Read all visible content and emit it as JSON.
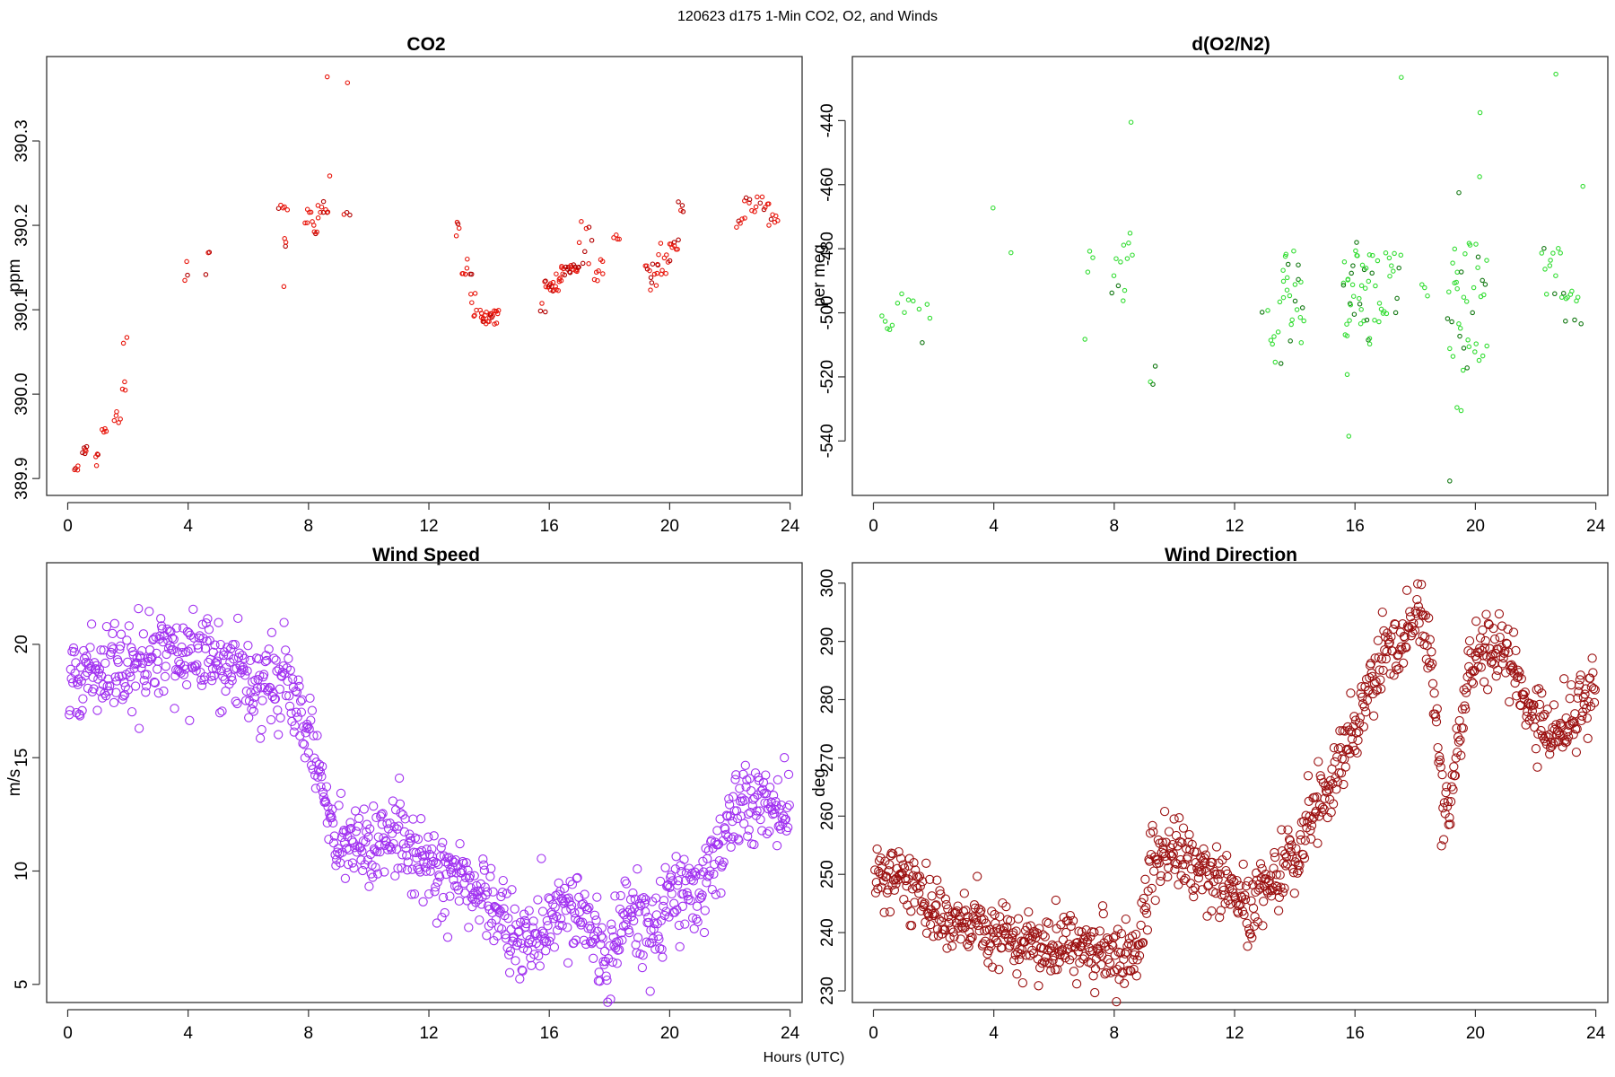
{
  "figure": {
    "title": "120623   d175   1-Min CO2, O2, and Winds",
    "xlabel": "Hours (UTC)"
  },
  "colors": {
    "co2": "#e8160c",
    "co2_dark": "#b20000",
    "o2": "#33dd33",
    "o2_dark": "#117711",
    "wind_speed": "#a030f0",
    "wind_direction": "#9b1010"
  },
  "chart_data": [
    {
      "id": "co2",
      "type": "scatter",
      "title": "CO2",
      "ylabel": "ppm",
      "xlim": [
        -0.7,
        24.4
      ],
      "ylim": [
        389.88,
        390.4
      ],
      "xticks": [
        0,
        4,
        8,
        12,
        16,
        20,
        24
      ],
      "yticks": [
        389.9,
        390.0,
        390.1,
        390.2,
        390.3
      ],
      "ytick_labels": [
        "389.9",
        "390.0",
        "390.1",
        "390.2",
        "390.3"
      ],
      "clusters": [
        {
          "x": [
            0.25,
            0.35
          ],
          "y": [
            389.905,
            389.915
          ],
          "n": 4
        },
        {
          "x": [
            0.5,
            0.65
          ],
          "y": [
            389.925,
            389.938
          ],
          "n": 6
        },
        {
          "x": [
            0.95,
            1.0
          ],
          "y": [
            389.915,
            389.935
          ],
          "n": 4
        },
        {
          "x": [
            1.15,
            1.3
          ],
          "y": [
            389.945,
            389.96
          ],
          "n": 4
        },
        {
          "x": [
            1.55,
            1.75
          ],
          "y": [
            389.962,
            389.99
          ],
          "n": 5
        },
        {
          "x": [
            1.8,
            1.95
          ],
          "y": [
            390.0,
            390.09
          ],
          "n": 5
        },
        {
          "x": [
            3.9,
            4.0
          ],
          "y": [
            390.13,
            390.165
          ],
          "n": 3
        },
        {
          "x": [
            4.6,
            4.7
          ],
          "y": [
            390.135,
            390.172
          ],
          "n": 3
        },
        {
          "x": [
            7.0,
            7.2
          ],
          "y": [
            390.22,
            390.225
          ],
          "n": 3
        },
        {
          "x": [
            7.15,
            7.3
          ],
          "y": [
            390.165,
            390.24
          ],
          "n": 5
        },
        {
          "x": [
            7.15,
            7.2
          ],
          "y": [
            390.125,
            390.13
          ],
          "n": 1
        },
        {
          "x": [
            7.9,
            8.3
          ],
          "y": [
            390.185,
            390.225
          ],
          "n": 10
        },
        {
          "x": [
            8.3,
            8.7
          ],
          "y": [
            390.2,
            390.26
          ],
          "n": 10
        },
        {
          "x": [
            8.6,
            8.65
          ],
          "y": [
            390.375,
            390.377
          ],
          "n": 1
        },
        {
          "x": [
            9.2,
            9.35
          ],
          "y": [
            390.212,
            390.218
          ],
          "n": 3
        },
        {
          "x": [
            9.25,
            9.3
          ],
          "y": [
            390.368,
            390.37
          ],
          "n": 1
        },
        {
          "x": [
            12.9,
            13.0
          ],
          "y": [
            390.185,
            390.205
          ],
          "n": 4
        },
        {
          "x": [
            13.1,
            13.4
          ],
          "y": [
            390.14,
            390.16
          ],
          "n": 7
        },
        {
          "x": [
            13.4,
            13.6
          ],
          "y": [
            390.09,
            390.135
          ],
          "n": 6
        },
        {
          "x": [
            13.7,
            14.3
          ],
          "y": [
            390.083,
            390.1
          ],
          "n": 25
        },
        {
          "x": [
            15.7,
            15.85
          ],
          "y": [
            390.095,
            390.11
          ],
          "n": 3
        },
        {
          "x": [
            15.85,
            16.4
          ],
          "y": [
            390.12,
            390.145
          ],
          "n": 20
        },
        {
          "x": [
            16.4,
            17.0
          ],
          "y": [
            390.14,
            390.155
          ],
          "n": 20
        },
        {
          "x": [
            17.0,
            17.4
          ],
          "y": [
            390.15,
            390.205
          ],
          "n": 8
        },
        {
          "x": [
            17.5,
            17.8
          ],
          "y": [
            390.13,
            390.16
          ],
          "n": 7
        },
        {
          "x": [
            18.15,
            18.3
          ],
          "y": [
            390.18,
            390.2
          ],
          "n": 4
        },
        {
          "x": [
            19.2,
            19.6
          ],
          "y": [
            390.12,
            390.155
          ],
          "n": 12
        },
        {
          "x": [
            19.6,
            20.0
          ],
          "y": [
            390.14,
            390.18
          ],
          "n": 10
        },
        {
          "x": [
            20.0,
            20.3
          ],
          "y": [
            390.17,
            390.185
          ],
          "n": 8
        },
        {
          "x": [
            20.3,
            20.45
          ],
          "y": [
            390.21,
            390.23
          ],
          "n": 4
        },
        {
          "x": [
            22.2,
            22.5
          ],
          "y": [
            390.195,
            390.215
          ],
          "n": 5
        },
        {
          "x": [
            22.5,
            23.3
          ],
          "y": [
            390.215,
            390.238
          ],
          "n": 14
        },
        {
          "x": [
            23.3,
            23.6
          ],
          "y": [
            390.2,
            390.215
          ],
          "n": 6
        }
      ]
    },
    {
      "id": "o2",
      "type": "scatter",
      "title": "d(O2/N2)",
      "ylabel": "per meg",
      "xlim": [
        -0.7,
        24.4
      ],
      "ylim": [
        -557,
        -420
      ],
      "xticks": [
        0,
        4,
        8,
        12,
        16,
        20,
        24
      ],
      "yticks": [
        -540,
        -520,
        -500,
        -480,
        -460,
        -440
      ],
      "ytick_labels": [
        "-540",
        "-520",
        "-500",
        "-480",
        "-460",
        "-440"
      ],
      "clusters": [
        {
          "x": [
            0.3,
            0.6
          ],
          "y": [
            -508,
            -500
          ],
          "n": 5
        },
        {
          "x": [
            0.8,
            1.3
          ],
          "y": [
            -502,
            -494
          ],
          "n": 5
        },
        {
          "x": [
            1.5,
            1.9
          ],
          "y": [
            -511,
            -491
          ],
          "n": 4
        },
        {
          "x": [
            3.9,
            4.0
          ],
          "y": [
            -467.5,
            -467
          ],
          "n": 1
        },
        {
          "x": [
            4.5,
            4.6
          ],
          "y": [
            -481.5,
            -481
          ],
          "n": 1
        },
        {
          "x": [
            7.0,
            7.1
          ],
          "y": [
            -508.5,
            -508
          ],
          "n": 1
        },
        {
          "x": [
            7.1,
            7.3
          ],
          "y": [
            -490,
            -472
          ],
          "n": 3
        },
        {
          "x": [
            7.9,
            8.3
          ],
          "y": [
            -499,
            -480
          ],
          "n": 6
        },
        {
          "x": [
            8.3,
            8.6
          ],
          "y": [
            -498,
            -470
          ],
          "n": 6
        },
        {
          "x": [
            8.55,
            8.6
          ],
          "y": [
            -441,
            -440
          ],
          "n": 1
        },
        {
          "x": [
            9.2,
            9.35
          ],
          "y": [
            -524,
            -514
          ],
          "n": 3
        },
        {
          "x": [
            12.9,
            13.1
          ],
          "y": [
            -500,
            -498
          ],
          "n": 2
        },
        {
          "x": [
            13.2,
            13.6
          ],
          "y": [
            -517,
            -495
          ],
          "n": 8
        },
        {
          "x": [
            13.6,
            14.3
          ],
          "y": [
            -510,
            -480
          ],
          "n": 22
        },
        {
          "x": [
            15.6,
            16.5
          ],
          "y": [
            -510,
            -478
          ],
          "n": 35
        },
        {
          "x": [
            15.7,
            15.75
          ],
          "y": [
            -519.5,
            -519
          ],
          "n": 1
        },
        {
          "x": [
            15.75,
            15.8
          ],
          "y": [
            -539,
            -538
          ],
          "n": 1
        },
        {
          "x": [
            16.5,
            17.5
          ],
          "y": [
            -503,
            -481
          ],
          "n": 22
        },
        {
          "x": [
            17.5,
            17.6
          ],
          "y": [
            -427,
            -426
          ],
          "n": 1
        },
        {
          "x": [
            18.2,
            18.4
          ],
          "y": [
            -495,
            -491
          ],
          "n": 3
        },
        {
          "x": [
            19.1,
            19.7
          ],
          "y": [
            -518,
            -475
          ],
          "n": 20
        },
        {
          "x": [
            19.1,
            19.2
          ],
          "y": [
            -553,
            -552
          ],
          "n": 1
        },
        {
          "x": [
            19.4,
            19.5
          ],
          "y": [
            -531,
            -528
          ],
          "n": 2
        },
        {
          "x": [
            19.4,
            19.5
          ],
          "y": [
            -463,
            -462
          ],
          "n": 1
        },
        {
          "x": [
            19.7,
            20.4
          ],
          "y": [
            -515,
            -478
          ],
          "n": 20
        },
        {
          "x": [
            20.1,
            20.2
          ],
          "y": [
            -458,
            -457
          ],
          "n": 1
        },
        {
          "x": [
            20.1,
            20.2
          ],
          "y": [
            -438,
            -437
          ],
          "n": 1
        },
        {
          "x": [
            22.2,
            23.0
          ],
          "y": [
            -496,
            -478
          ],
          "n": 14
        },
        {
          "x": [
            22.6,
            22.7
          ],
          "y": [
            -426,
            -425
          ],
          "n": 1
        },
        {
          "x": [
            23.0,
            23.5
          ],
          "y": [
            -504,
            -492
          ],
          "n": 8
        },
        {
          "x": [
            23.5,
            23.6
          ],
          "y": [
            -461,
            -460
          ],
          "n": 1
        }
      ]
    },
    {
      "id": "wind_speed",
      "type": "scatter",
      "title": "Wind Speed",
      "ylabel": "m/s",
      "xlim": [
        -0.7,
        24.4
      ],
      "ylim": [
        4.2,
        23.6
      ],
      "xticks": [
        0,
        4,
        8,
        12,
        16,
        20,
        24
      ],
      "yticks": [
        5,
        10,
        15,
        20
      ],
      "ytick_labels": [
        "5",
        "10",
        "15",
        "20"
      ],
      "trend_x": [
        0,
        0.5,
        1,
        2,
        3,
        4,
        5,
        6,
        7,
        7.5,
        8,
        8.5,
        9,
        10,
        11,
        12,
        13,
        14,
        15,
        16,
        17,
        18,
        18.5,
        19,
        19.5,
        20,
        21,
        22,
        23,
        24
      ],
      "trend_y": [
        18.2,
        18.6,
        18.8,
        19.2,
        19.4,
        19.6,
        19.2,
        18.6,
        18.0,
        17.6,
        16.2,
        13.5,
        11.2,
        11.0,
        11.5,
        10.2,
        9.6,
        8.5,
        7.0,
        7.5,
        8.2,
        6.0,
        8.5,
        8.2,
        7.5,
        9.0,
        9.0,
        12.2,
        12.8,
        12.5
      ],
      "spread": 0.9,
      "count": 1000
    },
    {
      "id": "wind_direction",
      "type": "scatter",
      "title": "Wind Direction",
      "ylabel": "deg",
      "xlim": [
        -0.7,
        24.4
      ],
      "ylim": [
        228,
        303.5
      ],
      "xticks": [
        0,
        4,
        8,
        12,
        16,
        20,
        24
      ],
      "yticks": [
        230,
        240,
        250,
        260,
        270,
        280,
        290,
        300
      ],
      "ytick_labels": [
        "230",
        "240",
        "250",
        "260",
        "270",
        "280",
        "290",
        "300"
      ],
      "trend_x": [
        0,
        1,
        2,
        3,
        4,
        5,
        6,
        7,
        8,
        8.8,
        9.2,
        10,
        11,
        12,
        12.5,
        13,
        14,
        14.5,
        15,
        16,
        17,
        17.5,
        18,
        18.5,
        19,
        19.5,
        20,
        21,
        22,
        23,
        24
      ],
      "trend_y": [
        251,
        250,
        243,
        242,
        240,
        238,
        238,
        238,
        236,
        235,
        254,
        254,
        250,
        247,
        243,
        248,
        253,
        258,
        265,
        275,
        289,
        289,
        296,
        288,
        258,
        275,
        289,
        289,
        276,
        275,
        282
      ],
      "spread": 3,
      "count": 1000
    }
  ]
}
